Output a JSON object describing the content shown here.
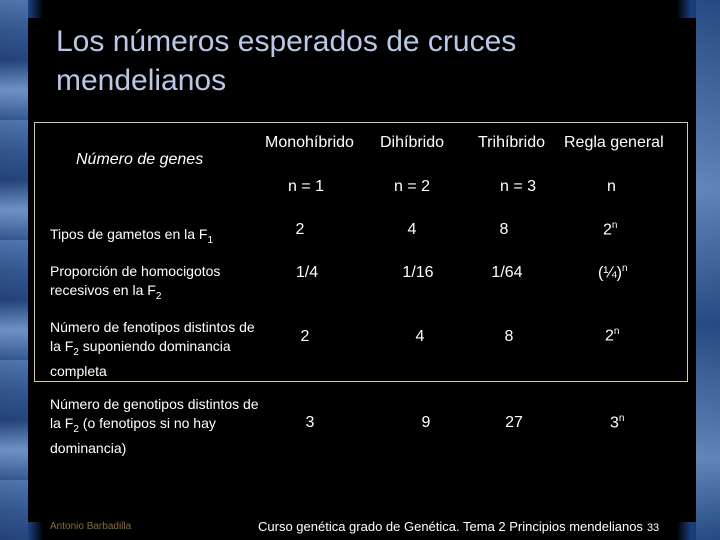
{
  "title": "Los números esperados de cruces mendelianos",
  "table": {
    "corner_label": "Número de genes",
    "columns": [
      {
        "label": "Monohíbrido",
        "n": "n = 1"
      },
      {
        "label": "Dihíbrido",
        "n": "n = 2"
      },
      {
        "label": "Trihíbrido",
        "n": "n = 3"
      },
      {
        "label": "Regla general",
        "n": "n"
      }
    ],
    "rows": [
      {
        "label_a": "Tipos de gametos en la F",
        "sub": "1",
        "label_b": "",
        "label_c": "",
        "values": [
          "2",
          "4",
          "8"
        ],
        "general_base": "2",
        "general_exp": "n"
      },
      {
        "label_a": "Proporción de homocigotos recesivos en la F",
        "sub": "2",
        "label_b": "",
        "label_c": "",
        "values": [
          "1/4",
          "1/16",
          "1/64"
        ],
        "general_base": "(¼)",
        "general_exp": "n"
      },
      {
        "label_a": "Número de fenotipos distintos de la F",
        "sub": "2",
        "label_b": " suponiendo dominancia completa",
        "label_c": "",
        "values": [
          "2",
          "4",
          "8"
        ],
        "general_base": "2",
        "general_exp": "n"
      },
      {
        "label_a": "Número de genotipos distintos de la F",
        "sub": "2",
        "label_b": " (o fenotipos si no hay dominancia)",
        "label_c": "",
        "values": [
          "3",
          "9",
          "27"
        ],
        "general_base": "3",
        "general_exp": "n"
      }
    ]
  },
  "footer": {
    "author": "Antonio Barbadilla",
    "course": "Curso genética grado de Genética. Tema 2 Principios mendelianos",
    "page": "33"
  },
  "colors": {
    "title": "#b9c8e6",
    "border": "#d7c9a0",
    "author": "#8c6b3a"
  }
}
